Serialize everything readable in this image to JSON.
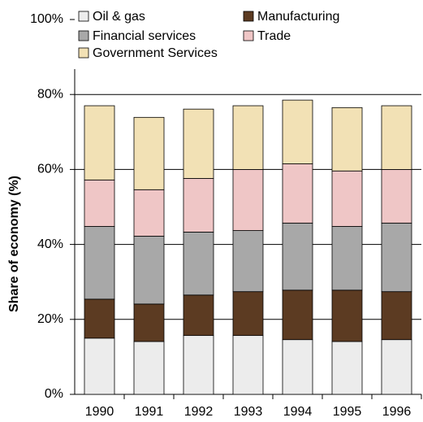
{
  "chart_data": {
    "type": "stacked-bar",
    "y_label": "Share of economy (%)",
    "categories": [
      "1990",
      "1991",
      "1992",
      "1993",
      "1994",
      "1995",
      "1996"
    ],
    "series": [
      {
        "name": "Oil & gas",
        "color": "#ececec",
        "values": [
          15.0,
          14.1,
          15.7,
          15.7,
          14.6,
          14.1,
          14.6
        ]
      },
      {
        "name": "Manufacturing",
        "color": "#5c3b22",
        "values": [
          10.4,
          10.0,
          10.8,
          11.7,
          13.2,
          13.7,
          12.8
        ]
      },
      {
        "name": "Financial services",
        "color": "#a8a8a8",
        "values": [
          19.4,
          18.1,
          16.8,
          16.3,
          17.9,
          17.0,
          18.3
        ]
      },
      {
        "name": "Trade",
        "color": "#efc6c6",
        "values": [
          12.4,
          12.4,
          14.3,
          16.3,
          15.8,
          14.8,
          14.3
        ]
      },
      {
        "name": "Government Services",
        "color": "#f2e1b5",
        "values": [
          19.8,
          19.3,
          18.5,
          17.0,
          17.0,
          16.9,
          17.0
        ]
      }
    ],
    "ylim": [
      0,
      100
    ],
    "yticks": [
      {
        "value": 0,
        "label": "0%"
      },
      {
        "value": 20,
        "label": "20%"
      },
      {
        "value": 40,
        "label": "40%"
      },
      {
        "value": 60,
        "label": "60%"
      },
      {
        "value": 80,
        "label": "80%"
      },
      {
        "value": 100,
        "label": "100%"
      }
    ],
    "grid": true
  }
}
